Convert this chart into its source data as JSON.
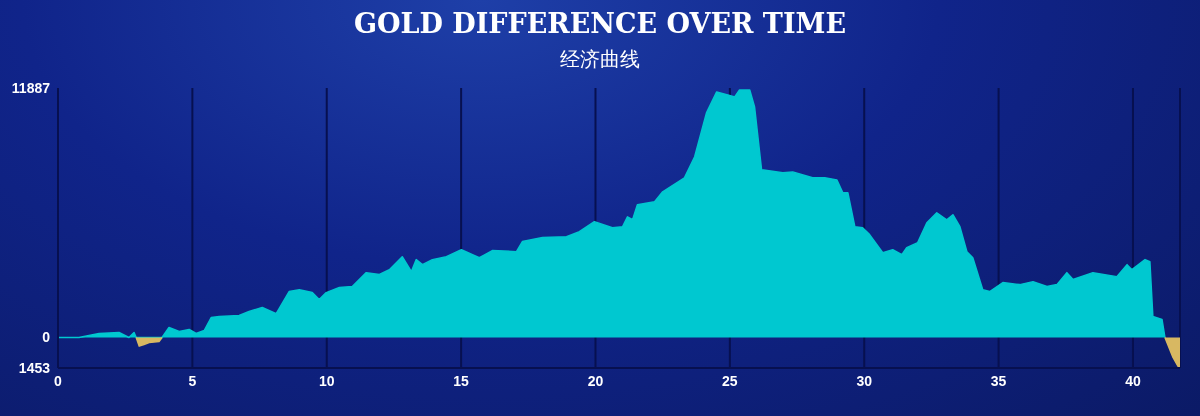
{
  "chart_data": {
    "type": "area",
    "title": "GOLD DIFFERENCE OVER TIME",
    "subtitle": "经济曲线",
    "xlim": [
      0,
      41.75
    ],
    "xticks": [
      0,
      5,
      10,
      15,
      20,
      25,
      30,
      35,
      40
    ],
    "ylim": [
      -1453,
      11887
    ],
    "yticks": [
      {
        "value": -1453,
        "label": "1453"
      },
      0,
      11887
    ],
    "grid": "x",
    "series": [
      {
        "color": "#00c8d0",
        "x": [
          0,
          0.78,
          1.34,
          1.53,
          2.27,
          2.64,
          2.83,
          2.91,
          3.87,
          4.13,
          4.51,
          4.88,
          5.14,
          5.44,
          5.7,
          6.0,
          6.74,
          7.11,
          7.6,
          8.12,
          8.6,
          8.98,
          9.46,
          9.72,
          9.98,
          10.47,
          10.95,
          11.47,
          11.96,
          12.33,
          12.81,
          13.15,
          13.33,
          13.56,
          13.93,
          14.45,
          15.01,
          15.68,
          16.16,
          17.06,
          17.28,
          18.03,
          18.92,
          19.4,
          19.96,
          20.63,
          21.01,
          21.19,
          21.38,
          21.56,
          22.2,
          22.5,
          23.31,
          23.69,
          24.13,
          24.51,
          24.92,
          25.18,
          25.36,
          25.74,
          25.92,
          26.18,
          26.97,
          27.34,
          28.08,
          28.53,
          28.98,
          29.2,
          29.39,
          29.65,
          29.94,
          30.2,
          30.69,
          31.06,
          31.4,
          31.58,
          31.99,
          32.33,
          32.7,
          33.07,
          33.3,
          33.56,
          33.82,
          34.04,
          34.41,
          34.67,
          35.16,
          35.79,
          36.28,
          36.8,
          37.17,
          37.54,
          37.77,
          38.51,
          39.4,
          39.78,
          39.96,
          40.45,
          40.63,
          40.74,
          41.08,
          41.19
        ],
        "values": [
          0,
          0,
          140,
          190,
          240,
          0,
          240,
          0,
          0,
          480,
          290,
          380,
          190,
          330,
          950,
          1000,
          1050,
          1240,
          1430,
          1140,
          2190,
          2280,
          2140,
          1810,
          2140,
          2380,
          2430,
          3090,
          3000,
          3230,
          3850,
          3140,
          3710,
          3470,
          3710,
          3850,
          4180,
          3800,
          4140,
          4090,
          4570,
          4760,
          4800,
          5040,
          5520,
          5230,
          5280,
          5750,
          5610,
          6320,
          6470,
          6940,
          7610,
          8610,
          10700,
          11700,
          11560,
          11460,
          11790,
          11790,
          10980,
          7990,
          7850,
          7890,
          7610,
          7610,
          7510,
          6900,
          6900,
          5280,
          5230,
          4900,
          4040,
          4180,
          3950,
          4280,
          4520,
          5470,
          5940,
          5610,
          5850,
          5280,
          4090,
          3800,
          2280,
          2190,
          2620,
          2520,
          2660,
          2430,
          2520,
          3090,
          2760,
          3090,
          2900,
          3470,
          3230,
          3710,
          3610,
          1000,
          860,
          0
        ]
      },
      {
        "color": "#d8b862",
        "x": [
          2.91,
          3.02,
          3.2,
          3.39,
          3.76,
          3.87,
          20,
          41.19,
          41.49,
          41.68,
          41.75
        ],
        "values": [
          0,
          -410,
          -330,
          -240,
          -190,
          0,
          null,
          0,
          -950,
          -1380,
          -1380
        ]
      }
    ]
  }
}
